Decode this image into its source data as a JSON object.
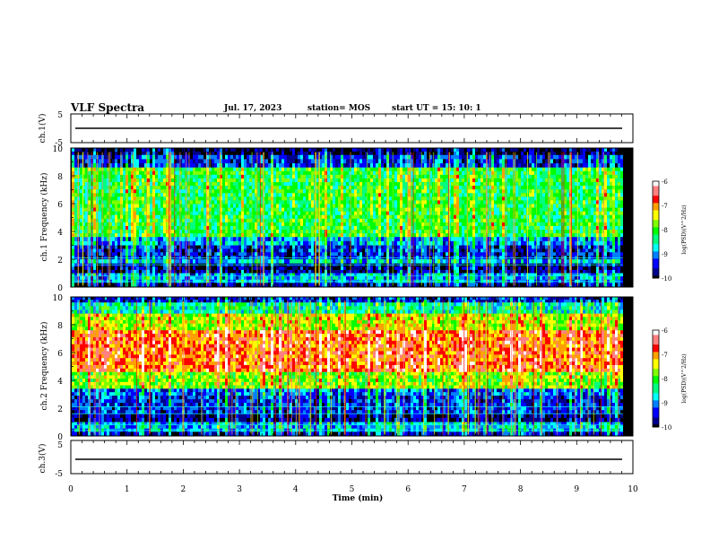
{
  "header": {
    "title": "VLF Spectra",
    "date": "Jul. 17, 2023",
    "station": "station= MOS",
    "start": "start UT =  15: 10: 1"
  },
  "chart_data": [
    {
      "type": "line",
      "panel": "waveform-top",
      "ylabel": "ch.1(V)",
      "ylim": [
        -5,
        5
      ],
      "yticks": [
        "5",
        "-5"
      ],
      "xlim": [
        0,
        10
      ],
      "series": [
        {
          "x": [
            0.08,
            9.82
          ],
          "values": [
            0,
            0
          ]
        }
      ]
    },
    {
      "type": "heatmap",
      "panel": "spectrogram-1",
      "ylabel": "ch.1 Frequency (kHz)",
      "ylim": [
        0,
        10
      ],
      "yticks": [
        "10",
        "8",
        "6",
        "4",
        "2",
        "0"
      ],
      "xlim": [
        0,
        10
      ],
      "colorbar": {
        "label": "log(PSD)(V^2/Hz)",
        "range": [
          -10,
          -6
        ],
        "ticks": [
          "-6",
          "-7",
          "-8",
          "-9",
          "-10"
        ]
      },
      "bands": [
        {
          "f": [
            9.5,
            10
          ],
          "level": -10
        },
        {
          "f": [
            8.6,
            9.5
          ],
          "level": -9.4
        },
        {
          "f": [
            3.6,
            8.6
          ],
          "level": -8.2
        },
        {
          "f": [
            3.0,
            3.6
          ],
          "level": -9.0
        },
        {
          "f": [
            2.0,
            3.0
          ],
          "level": -9.5
        },
        {
          "f": [
            1.7,
            2.0
          ],
          "level": -8.9
        },
        {
          "f": [
            1.0,
            1.7
          ],
          "level": -9.8
        },
        {
          "f": [
            0.3,
            1.0
          ],
          "level": -9.0
        },
        {
          "f": [
            0,
            0.3
          ],
          "level": -9.7
        }
      ]
    },
    {
      "type": "heatmap",
      "panel": "spectrogram-2",
      "ylabel": "ch.2 Frequency (kHz)",
      "ylim": [
        0,
        10
      ],
      "yticks": [
        "10",
        "8",
        "6",
        "4",
        "2",
        "0"
      ],
      "xlim": [
        0,
        10
      ],
      "colorbar": {
        "label": "log(PSD)(V^2/Hz)",
        "range": [
          -10,
          -6
        ],
        "ticks": [
          "-6",
          "-7",
          "-8",
          "-9",
          "-10"
        ]
      },
      "bands": [
        {
          "f": [
            9.6,
            10
          ],
          "level": -9.5
        },
        {
          "f": [
            8.8,
            9.6
          ],
          "level": -8.6
        },
        {
          "f": [
            7.6,
            8.8
          ],
          "level": -7.6
        },
        {
          "f": [
            4.6,
            7.6
          ],
          "level": -6.9
        },
        {
          "f": [
            3.4,
            4.6
          ],
          "level": -7.8
        },
        {
          "f": [
            2.9,
            3.4
          ],
          "level": -9.2
        },
        {
          "f": [
            1.6,
            2.9
          ],
          "level": -9.4
        },
        {
          "f": [
            1.0,
            1.6
          ],
          "level": -9.8
        },
        {
          "f": [
            0.3,
            1.0
          ],
          "level": -8.9
        },
        {
          "f": [
            0,
            0.3
          ],
          "level": -9.6
        }
      ]
    },
    {
      "type": "line",
      "panel": "waveform-bottom",
      "ylabel": "ch.3(V)",
      "ylim": [
        -5,
        5
      ],
      "yticks": [
        "5",
        "-5"
      ],
      "xlim": [
        0,
        10
      ],
      "xlabel": "Time (min)",
      "xticks": [
        "0",
        "1",
        "2",
        "3",
        "4",
        "5",
        "6",
        "7",
        "8",
        "9",
        "10"
      ],
      "series": [
        {
          "x": [
            0.08,
            9.82
          ],
          "values": [
            0,
            0
          ]
        }
      ]
    }
  ],
  "colors": {
    "colormap": [
      "#000000",
      "#00008b",
      "#0000ff",
      "#0080ff",
      "#00ffff",
      "#00ff80",
      "#00ff00",
      "#80ff00",
      "#ffff00",
      "#ffa000",
      "#ff0000",
      "#ff8080",
      "#ffffff"
    ]
  }
}
